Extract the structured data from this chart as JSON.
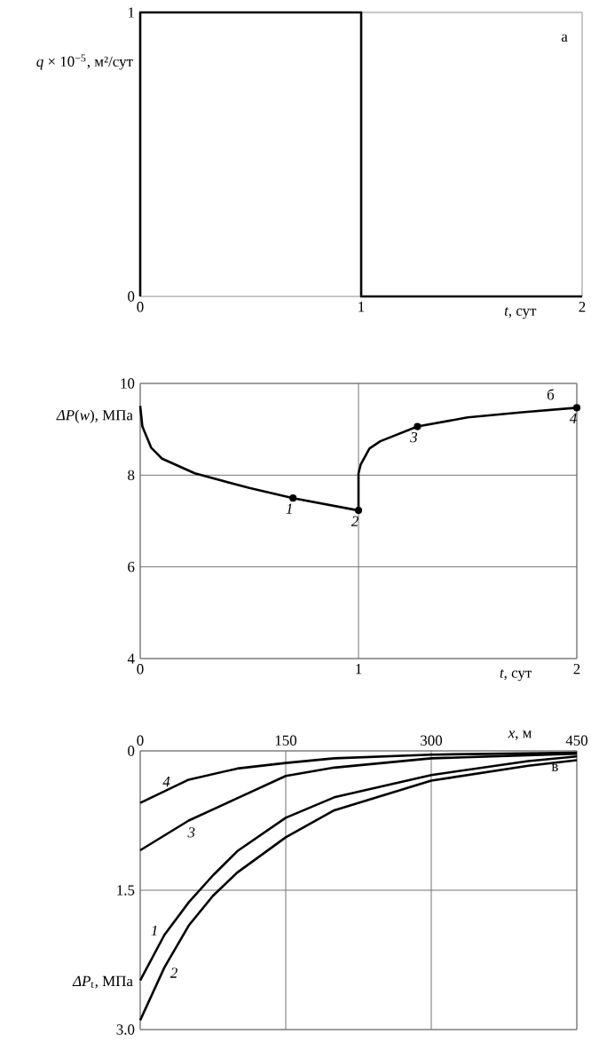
{
  "chart_data": [
    {
      "type": "line",
      "xlabel": "*t*, сут",
      "ylabel": "*q* × 10$^{−5}$, м²/сут",
      "annotations": [
        "а"
      ],
      "xlim": [
        0,
        2
      ],
      "xticks": [
        0,
        1,
        2
      ],
      "ylim": [
        0,
        1
      ],
      "yticks": [
        0,
        1
      ],
      "series": [
        {
          "color": "#000000",
          "x": [
            0,
            0,
            1,
            1,
            2
          ],
          "values": [
            0,
            1,
            1,
            0,
            0
          ]
        }
      ]
    },
    {
      "type": "line",
      "xlabel": "*t*, сут",
      "ylabel": "*ΔP*(*w*), МПа",
      "xlim": [
        0,
        2
      ],
      "xticks": [
        0,
        1,
        2
      ],
      "ylim": [
        4,
        10
      ],
      "yticks": [
        4,
        6,
        8,
        10
      ],
      "grid": true,
      "annotations": [
        "б",
        {
          "text": "*1*",
          "x": 0.7,
          "y": 7.5
        },
        {
          "text": "*2*",
          "x": 1,
          "y": 7.23
        },
        {
          "text": "*3*",
          "x": 1.27,
          "y": 9.06
        },
        {
          "text": "*4*",
          "x": 2,
          "y": 9.47
        }
      ],
      "series": [
        {
          "color": "#000000",
          "x": [
            0,
            0.01,
            0.05,
            0.1,
            0.25,
            0.5,
            0.7,
            1,
            1,
            1.01,
            1.05,
            1.1,
            1.27,
            1.5,
            1.75,
            2
          ],
          "values": [
            9.51,
            9.06,
            8.6,
            8.36,
            8.04,
            7.72,
            7.5,
            7.23,
            8.04,
            8.23,
            8.58,
            8.74,
            9.06,
            9.26,
            9.37,
            9.47
          ]
        },
        {
          "type": "scatter",
          "marker": "circle",
          "color": "#000000",
          "x": [
            0.7,
            1,
            1.27,
            2
          ],
          "values": [
            7.5,
            7.23,
            9.06,
            9.47
          ]
        }
      ]
    },
    {
      "type": "line",
      "xlabel": "*x*, м",
      "ylabel": "*ΔP*$_{t}$, МПа",
      "xlim": [
        0,
        450
      ],
      "xticks": [
        0,
        150,
        300,
        450
      ],
      "ylim": [
        3.0,
        0
      ],
      "yticks": [
        0,
        1.5,
        {
          "value": 3,
          "label": "3.0"
        }
      ],
      "grid": true,
      "annotations": [
        "в"
      ],
      "series": [
        {
          "name": "*1*",
          "color": "#000000",
          "x": [
            0,
            25,
            50,
            75,
            100,
            150,
            200,
            300,
            400,
            450
          ],
          "values": [
            2.47,
            1.98,
            1.63,
            1.34,
            1.08,
            0.72,
            0.5,
            0.26,
            0.11,
            0.06
          ]
        },
        {
          "name": "*2*",
          "color": "#000000",
          "x": [
            0,
            25,
            50,
            75,
            100,
            150,
            200,
            300,
            400,
            450
          ],
          "values": [
            2.9,
            2.33,
            1.88,
            1.56,
            1.31,
            0.93,
            0.64,
            0.32,
            0.16,
            0.1
          ]
        },
        {
          "name": "*3*",
          "color": "#000000",
          "x": [
            0,
            50,
            100,
            150,
            200,
            300,
            450
          ],
          "values": [
            1.07,
            0.75,
            0.51,
            0.27,
            0.18,
            0.08,
            0.03
          ]
        },
        {
          "name": "*4*",
          "color": "#000000",
          "x": [
            0,
            50,
            100,
            150,
            200,
            300,
            450
          ],
          "values": [
            0.56,
            0.31,
            0.19,
            0.13,
            0.08,
            0.04,
            0.02
          ]
        }
      ]
    }
  ]
}
